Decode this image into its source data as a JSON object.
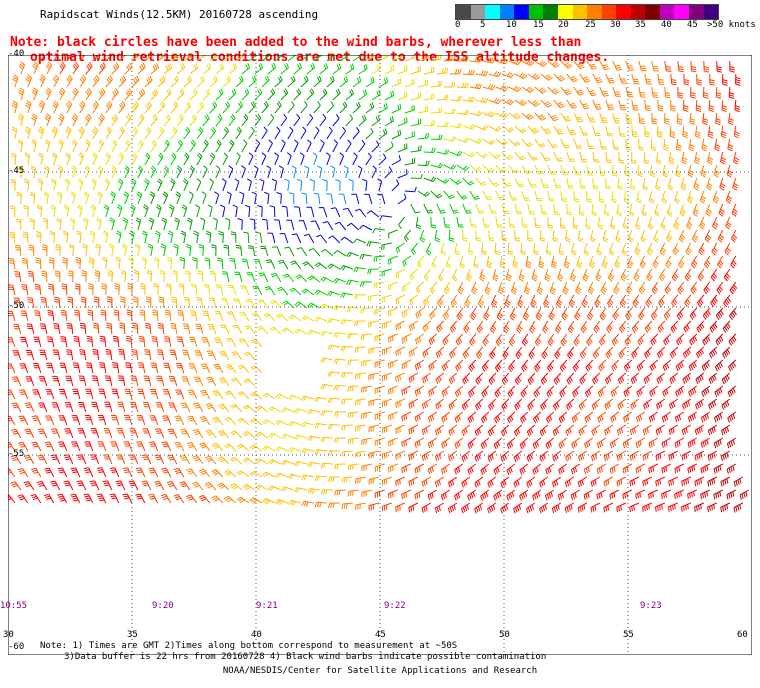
{
  "title": "Rapidscat Winds(12.5KM) 20160728 ascending",
  "note": {
    "line1": "Note: black circles have been added to the wind barbs, wherever less than",
    "line2": "optimal wind retrieval conditions are met due to the ISS altitude changes."
  },
  "colorbar": {
    "colors": [
      "#4a4a4a",
      "#9a9a9a",
      "#00ffff",
      "#0080ff",
      "#0000ff",
      "#00c000",
      "#008000",
      "#ffff00",
      "#ffc000",
      "#ff8000",
      "#ff4000",
      "#ff0000",
      "#c00000",
      "#800000",
      "#c000c0",
      "#ff00ff",
      "#800080",
      "#400080"
    ],
    "labels": [
      "0",
      "5",
      "10",
      "15",
      "20",
      "25",
      "30",
      "35",
      "40",
      "45",
      ">50 knots"
    ]
  },
  "axes": {
    "lon_labels": [
      "30",
      "35",
      "40",
      "45",
      "50",
      "55",
      "60"
    ],
    "lat_labels": [
      "-40",
      "-45",
      "-50",
      "-55",
      "-60"
    ],
    "times": [
      "10:55",
      "9:20",
      "9:21",
      "9:22",
      "9:23"
    ]
  },
  "footer": {
    "line1": "Note: 1) Times are GMT 2)Times along bottom correspond to measurement at ~50S",
    "line2": "3)Data buffer is 22 hrs from 20160728 4) Black wind barbs indicate possible contamination",
    "line3": "NOAA/NESDIS/Center for Satellite Applications and Research"
  }
}
